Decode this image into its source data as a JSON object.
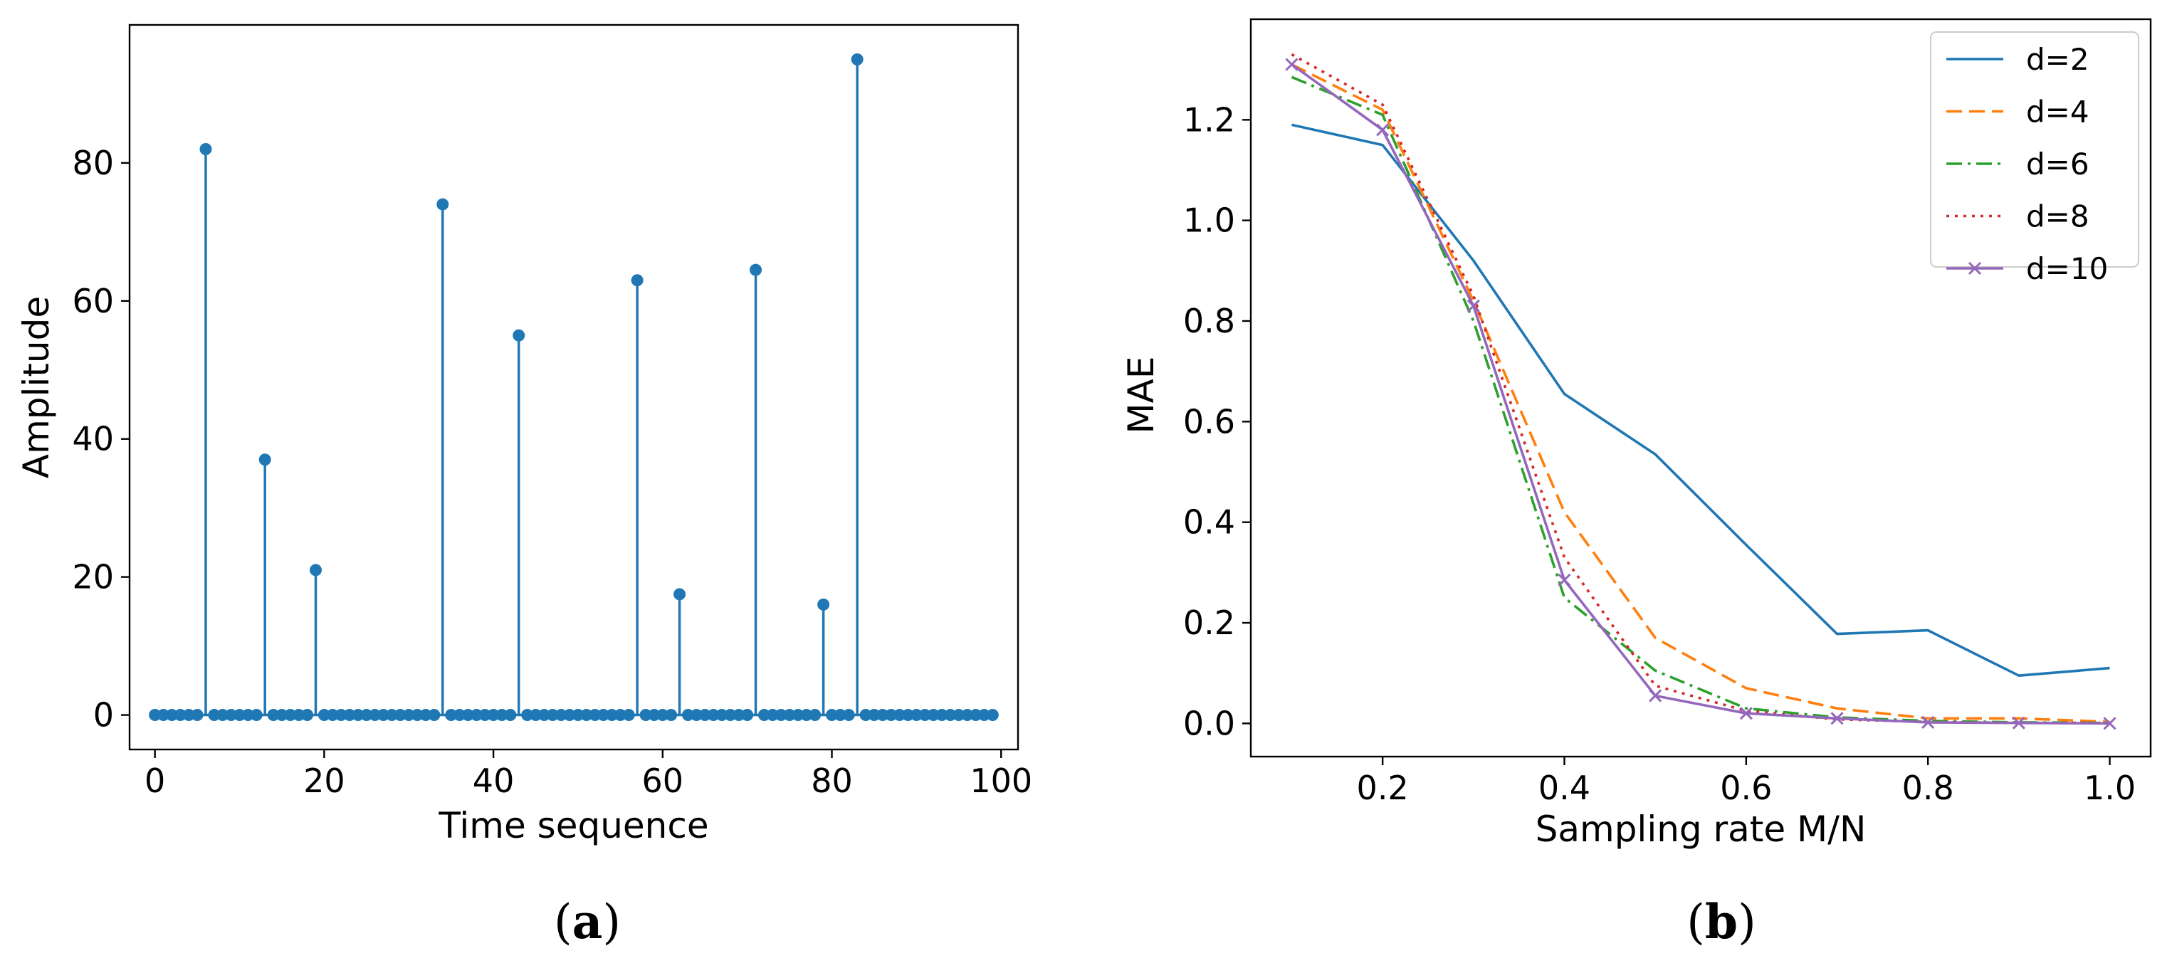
{
  "chart_data": [
    {
      "type": "stem",
      "panel_label": {
        "open": "(",
        "letter": "a",
        "close": ")"
      },
      "xlabel": "Time sequence",
      "ylabel": "Amplitude",
      "xlim": [
        -3,
        102
      ],
      "ylim": [
        -5,
        100
      ],
      "xticks": [
        0,
        20,
        40,
        60,
        80,
        100
      ],
      "yticks": [
        0,
        20,
        40,
        60,
        80
      ],
      "color": "#1f77b4",
      "n": 100,
      "spikes": [
        {
          "x": 6,
          "y": 82
        },
        {
          "x": 13,
          "y": 37
        },
        {
          "x": 19,
          "y": 21
        },
        {
          "x": 34,
          "y": 74
        },
        {
          "x": 43,
          "y": 55
        },
        {
          "x": 57,
          "y": 63
        },
        {
          "x": 62,
          "y": 17.5
        },
        {
          "x": 71,
          "y": 64.5
        },
        {
          "x": 79,
          "y": 16
        },
        {
          "x": 83,
          "y": 95
        }
      ]
    },
    {
      "type": "line",
      "panel_label": {
        "open": "(",
        "letter": "b",
        "close": ")"
      },
      "xlabel": "Sampling rate M/N",
      "ylabel": "MAE",
      "xlim": [
        0.055,
        1.045
      ],
      "ylim": [
        -0.066,
        1.4
      ],
      "xticks": [
        "0.2",
        "0.4",
        "0.6",
        "0.8",
        "1.0"
      ],
      "yticks": [
        "0.0",
        "0.2",
        "0.4",
        "0.6",
        "0.8",
        "1.0",
        "1.2"
      ],
      "x": [
        0.1,
        0.2,
        0.3,
        0.4,
        0.5,
        0.6,
        0.7,
        0.8,
        0.9,
        1.0
      ],
      "legend_position": "top-right",
      "series": [
        {
          "name": "d=2",
          "color": "#1f77b4",
          "style": "solid",
          "marker": "none",
          "values": [
            1.19,
            1.15,
            0.92,
            0.655,
            0.535,
            0.355,
            0.178,
            0.185,
            0.095,
            0.11
          ]
        },
        {
          "name": "d=4",
          "color": "#ff7f0e",
          "style": "dashed",
          "marker": "none",
          "values": [
            1.31,
            1.22,
            0.84,
            0.42,
            0.17,
            0.07,
            0.03,
            0.01,
            0.01,
            0.003
          ]
        },
        {
          "name": "d=6",
          "color": "#2ca02c",
          "style": "dashdot",
          "marker": "none",
          "values": [
            1.285,
            1.21,
            0.8,
            0.25,
            0.105,
            0.03,
            0.012,
            0.005,
            0.002,
            0.001
          ]
        },
        {
          "name": "d=8",
          "color": "#d62728",
          "style": "dotted",
          "marker": "none",
          "values": [
            1.33,
            1.23,
            0.85,
            0.33,
            0.075,
            0.025,
            0.008,
            0.003,
            0.001,
            0.001
          ]
        },
        {
          "name": "d=10",
          "color": "#9467bd",
          "style": "solid",
          "marker": "x",
          "values": [
            1.31,
            1.18,
            0.83,
            0.285,
            0.055,
            0.02,
            0.01,
            0.002,
            0.001,
            0.0
          ]
        }
      ]
    }
  ]
}
